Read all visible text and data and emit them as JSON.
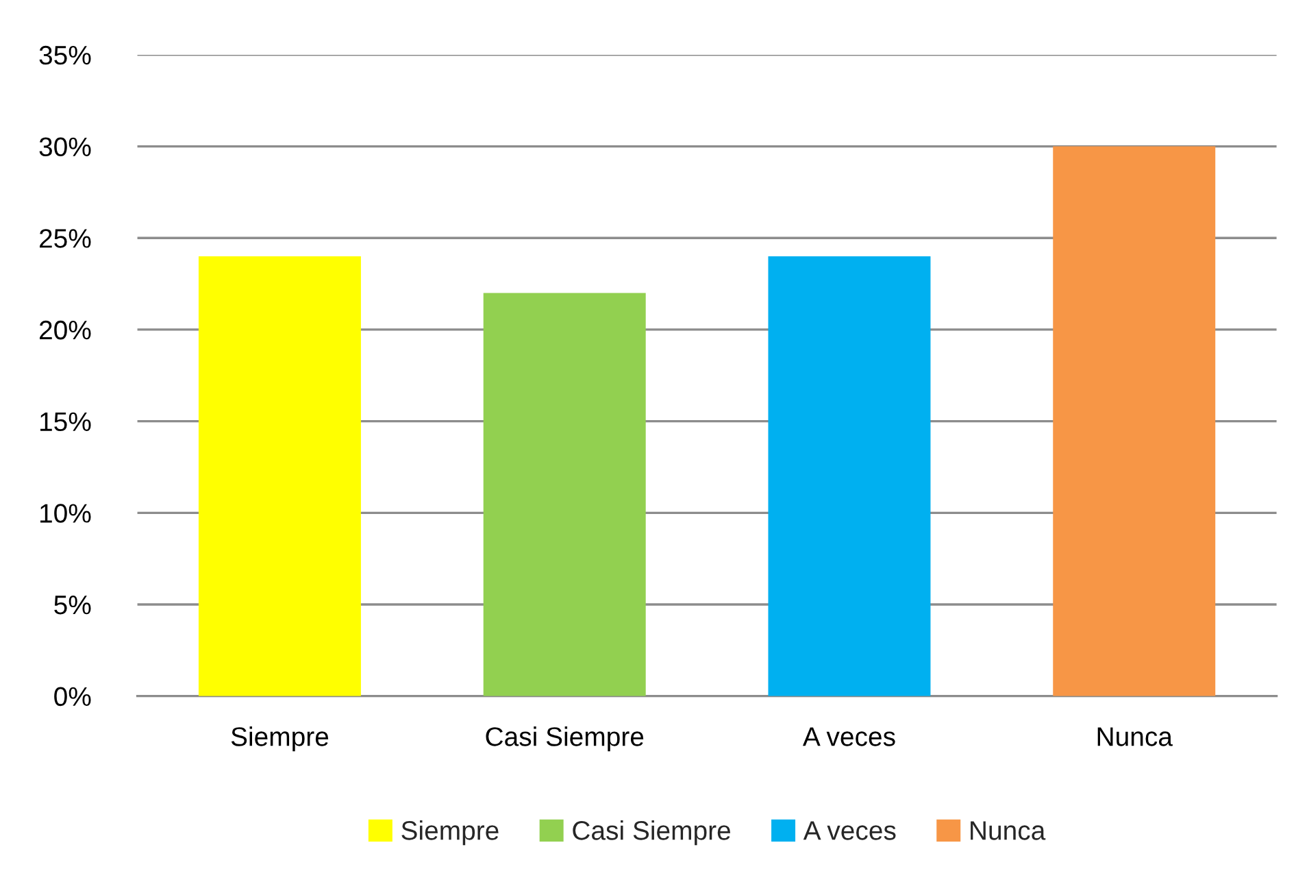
{
  "chart_data": {
    "type": "bar",
    "categories": [
      "Siempre",
      "Casi Siempre",
      "A veces",
      "Nunca"
    ],
    "series": [
      {
        "name": "Siempre",
        "color": "#ffff00",
        "values": [
          24,
          null,
          null,
          null
        ]
      },
      {
        "name": "Casi Siempre",
        "color": "#92d050",
        "values": [
          null,
          22,
          null,
          null
        ]
      },
      {
        "name": "A veces",
        "color": "#00b0f0",
        "values": [
          null,
          null,
          24,
          null
        ]
      },
      {
        "name": "Nunca",
        "color": "#f79646",
        "values": [
          null,
          null,
          null,
          30
        ]
      }
    ],
    "ylim": [
      0,
      35
    ],
    "yticks": [
      {
        "value": 0,
        "label": "0%"
      },
      {
        "value": 5,
        "label": "5%"
      },
      {
        "value": 10,
        "label": "10%"
      },
      {
        "value": 15,
        "label": "15%"
      },
      {
        "value": 20,
        "label": "20%"
      },
      {
        "value": 25,
        "label": "25%"
      },
      {
        "value": 30,
        "label": "30%"
      },
      {
        "value": 35,
        "label": "35%"
      }
    ],
    "grid": "y",
    "legend": "bottom"
  }
}
